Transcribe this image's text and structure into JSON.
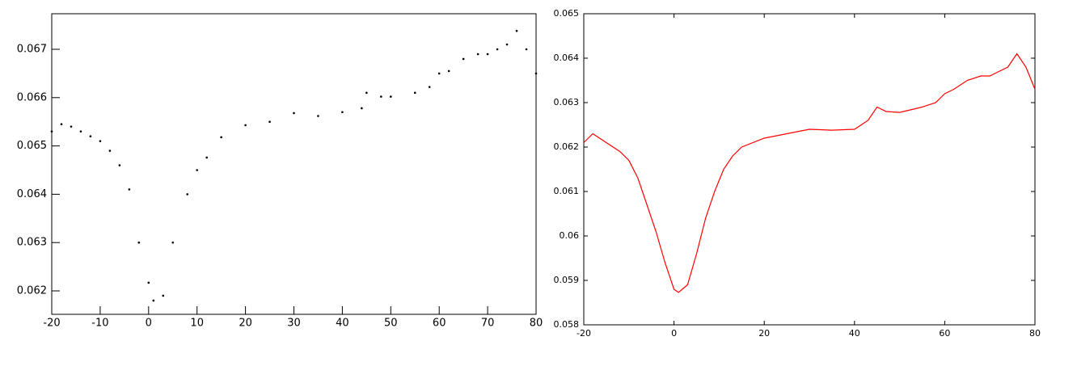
{
  "chart_data": [
    {
      "type": "scatter",
      "color": "#000000",
      "x": [
        -20,
        -18,
        -16,
        -14,
        -12,
        -10,
        -8,
        -6,
        -4,
        -2,
        0,
        1,
        3,
        5,
        8,
        10,
        12,
        15,
        20,
        25,
        30,
        35,
        40,
        44,
        45,
        48,
        50,
        55,
        58,
        60,
        62,
        65,
        68,
        70,
        72,
        74,
        76,
        78,
        80
      ],
      "values": [
        0.0653,
        0.06545,
        0.0654,
        0.0653,
        0.0652,
        0.0651,
        0.0649,
        0.0646,
        0.0641,
        0.063,
        0.06217,
        0.0618,
        0.0619,
        0.063,
        0.064,
        0.0645,
        0.06476,
        0.06518,
        0.06543,
        0.0655,
        0.06568,
        0.06562,
        0.0657,
        0.06578,
        0.0661,
        0.06602,
        0.06602,
        0.0661,
        0.06622,
        0.0665,
        0.06655,
        0.0668,
        0.0669,
        0.0669,
        0.067,
        0.0671,
        0.06738,
        0.067,
        0.0665
      ],
      "xlim": [
        -20,
        80
      ],
      "xticks": [
        -20,
        -10,
        0,
        10,
        20,
        30,
        40,
        50,
        60,
        70,
        80
      ],
      "ylim": [
        0.061515,
        0.067736
      ],
      "yticks": [
        0.062,
        0.063,
        0.064,
        0.065,
        0.066,
        0.067
      ]
    },
    {
      "type": "line",
      "color": "#ff0000",
      "x": [
        -20,
        -18,
        -15,
        -12,
        -10,
        -8,
        -6,
        -4,
        -2,
        0,
        1,
        3,
        5,
        7,
        9,
        11,
        13,
        15,
        20,
        25,
        30,
        35,
        40,
        43,
        45,
        47,
        50,
        55,
        58,
        60,
        62,
        65,
        68,
        70,
        72,
        74,
        76,
        78,
        80
      ],
      "values": [
        0.0621,
        0.0623,
        0.0621,
        0.0619,
        0.0617,
        0.0613,
        0.0607,
        0.0601,
        0.0594,
        0.0588,
        0.05873,
        0.0589,
        0.0596,
        0.0604,
        0.061,
        0.0615,
        0.0618,
        0.062,
        0.0622,
        0.0623,
        0.0624,
        0.06238,
        0.0624,
        0.0626,
        0.0629,
        0.0628,
        0.06278,
        0.0629,
        0.063,
        0.0632,
        0.0633,
        0.0635,
        0.0636,
        0.0636,
        0.0637,
        0.0638,
        0.0641,
        0.0638,
        0.0633
      ],
      "xlim": [
        -20,
        80
      ],
      "xticks": [
        -20,
        0,
        20,
        40,
        60,
        80
      ],
      "ylim": [
        0.058,
        0.065
      ],
      "yticks": [
        0.058,
        0.059,
        0.06,
        0.061,
        0.062,
        0.063,
        0.064,
        0.065
      ]
    }
  ]
}
